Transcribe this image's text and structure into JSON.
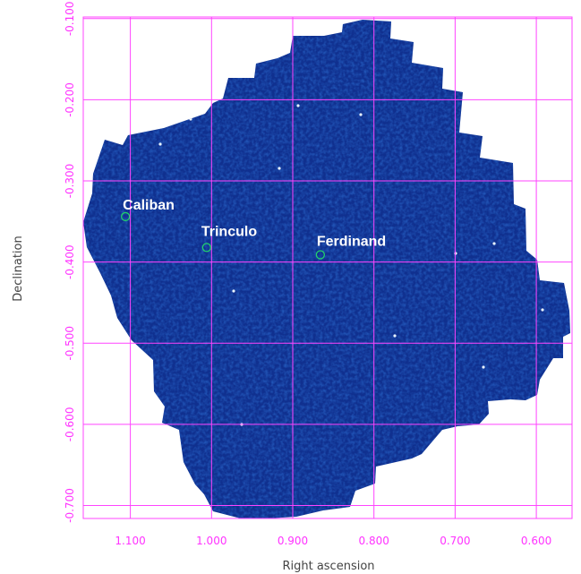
{
  "figure": {
    "xlabel": "Right ascension",
    "ylabel": "Declination",
    "x_ticks": [
      "1.100",
      "1.000",
      "0.900",
      "0.800",
      "0.700",
      "0.600"
    ],
    "y_ticks": [
      "-0.100",
      "-0.200",
      "-0.300",
      "-0.400",
      "-0.500",
      "-0.600",
      "-0.700"
    ],
    "x_tick_values": [
      1.1,
      1.0,
      0.9,
      0.8,
      0.7,
      0.6
    ],
    "y_tick_values": [
      -0.1,
      -0.2,
      -0.3,
      -0.4,
      -0.5,
      -0.6,
      -0.7
    ],
    "x_range": [
      1.158,
      0.556
    ],
    "y_range": [
      -0.098,
      -0.716
    ],
    "grid": true
  },
  "colors": {
    "grid": "#ff44ff",
    "tick_label": "#ff33ff",
    "sky": "#10308f",
    "marker": "#22d36b",
    "label": "#ffffff"
  },
  "objects": [
    {
      "name": "Caliban",
      "ra": 1.106,
      "dec": -0.344
    },
    {
      "name": "Trinculo",
      "ra": 1.006,
      "dec": -0.382
    },
    {
      "name": "Ferdinand",
      "ra": 0.866,
      "dec": -0.391
    }
  ]
}
